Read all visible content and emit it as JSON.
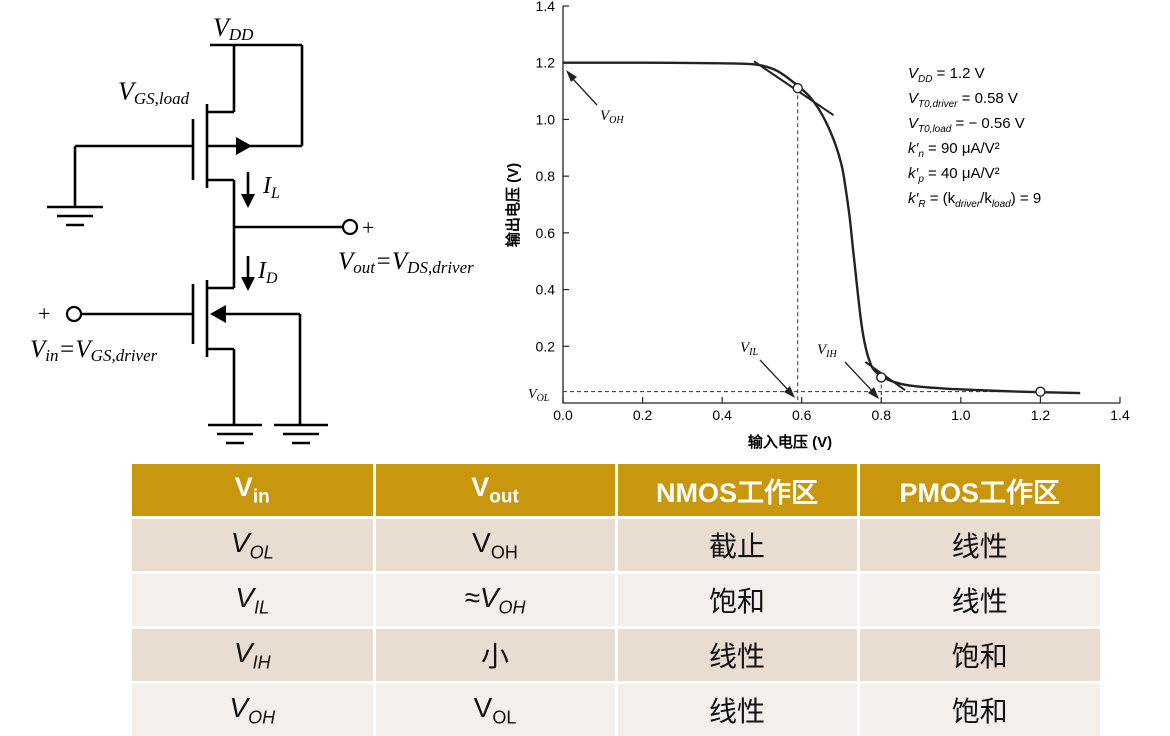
{
  "circuit": {
    "vdd": {
      "main": "V",
      "sub": "DD"
    },
    "vgs_load": {
      "main": "V",
      "sub": "GS,load"
    },
    "i_l": {
      "main": "I",
      "sub": "L"
    },
    "i_d": {
      "main": "I",
      "sub": "D"
    },
    "plus": "+",
    "vout_label": {
      "main": "V",
      "sub1": "out",
      "eq": "=V",
      "sub2": "DS,driver"
    },
    "vin_label": {
      "main": "V",
      "sub1": "in",
      "eq": "=V",
      "sub2": "GS,driver"
    }
  },
  "chart_data": {
    "type": "line",
    "xlabel": "输入电压 (V)",
    "ylabel": "输出电压 (V)",
    "xlim": [
      0.0,
      1.4
    ],
    "ylim": [
      0.0,
      1.4
    ],
    "x_ticks": [
      "0.0",
      "0.2",
      "0.4",
      "0.6",
      "0.8",
      "1.0",
      "1.2",
      "1.4"
    ],
    "y_ticks": [
      "0.2",
      "0.4",
      "0.6",
      "0.8",
      "1.0",
      "1.2",
      "1.4"
    ],
    "series": [
      {
        "x": [
          0.0,
          0.2,
          0.4,
          0.46,
          0.5,
          0.54,
          0.58,
          0.62,
          0.65,
          0.68,
          0.7,
          0.71,
          0.72,
          0.73,
          0.74,
          0.75,
          0.76,
          0.77,
          0.78,
          0.8,
          0.83,
          0.87,
          0.95,
          1.05,
          1.15,
          1.3
        ],
        "y": [
          1.2,
          1.2,
          1.198,
          1.196,
          1.19,
          1.17,
          1.13,
          1.08,
          1.02,
          0.93,
          0.84,
          0.76,
          0.66,
          0.53,
          0.4,
          0.28,
          0.2,
          0.15,
          0.12,
          0.095,
          0.075,
          0.062,
          0.052,
          0.045,
          0.04,
          0.035
        ]
      }
    ],
    "tangent_lines": [
      {
        "x": [
          0.48,
          0.68
        ],
        "y": [
          1.205,
          1.015
        ]
      },
      {
        "x": [
          0.76,
          0.86
        ],
        "y": [
          0.145,
          0.045
        ]
      }
    ],
    "markers": [
      {
        "x": 0.59,
        "y": 1.11
      },
      {
        "x": 0.8,
        "y": 0.09
      },
      {
        "x": 1.2,
        "y": 0.04
      }
    ],
    "guides": [
      {
        "x": [
          0.59,
          0.59
        ],
        "y": [
          1.11,
          0.0
        ]
      },
      {
        "x": [
          0.8,
          0.8
        ],
        "y": [
          0.09,
          0.0
        ]
      },
      {
        "x": [
          0.0,
          1.2
        ],
        "y": [
          0.04,
          0.04
        ]
      }
    ],
    "annotations": {
      "voh": {
        "main": "V",
        "sub": "OH"
      },
      "vil": {
        "main": "V",
        "sub": "IL"
      },
      "vih": {
        "main": "V",
        "sub": "IH"
      },
      "vol": {
        "main": "V",
        "sub": "OL"
      }
    },
    "param_lines": [
      [
        "V",
        "DD",
        "",
        " = 1.2 V"
      ],
      [
        "V",
        "T0,driver",
        "",
        " = 0.58 V"
      ],
      [
        "V",
        "T0,load",
        "",
        " = − 0.56 V"
      ],
      [
        "k′",
        "n",
        "",
        " = 90 μA/V²"
      ],
      [
        "k′",
        "p",
        "",
        " = 40 μA/V²"
      ],
      [
        "k′",
        "R",
        "",
        " = (k",
        "driver",
        "/k",
        "load",
        ") = 9"
      ]
    ]
  },
  "table": {
    "headers": [
      {
        "main": "V",
        "sub": "in"
      },
      {
        "main": "V",
        "sub": "out"
      },
      {
        "text": "NMOS工作区"
      },
      {
        "text": "PMOS工作区"
      }
    ],
    "rows": [
      {
        "vin": {
          "main": "V",
          "sub": "OL"
        },
        "vout": {
          "main": "V",
          "sub": "OH"
        },
        "nmos": "截止",
        "pmos": "线性"
      },
      {
        "vin": {
          "main": "V",
          "sub": "IL"
        },
        "vout": {
          "approx": "≈V",
          "sub": "OH"
        },
        "nmos": "饱和",
        "pmos": "线性"
      },
      {
        "vin": {
          "main": "V",
          "sub": "IH"
        },
        "vout": {
          "text": "小"
        },
        "nmos": "线性",
        "pmos": "饱和"
      },
      {
        "vin": {
          "main": "V",
          "sub": "OH"
        },
        "vout": {
          "main": "V",
          "sub": "OL"
        },
        "nmos": "线性",
        "pmos": "饱和"
      }
    ]
  }
}
